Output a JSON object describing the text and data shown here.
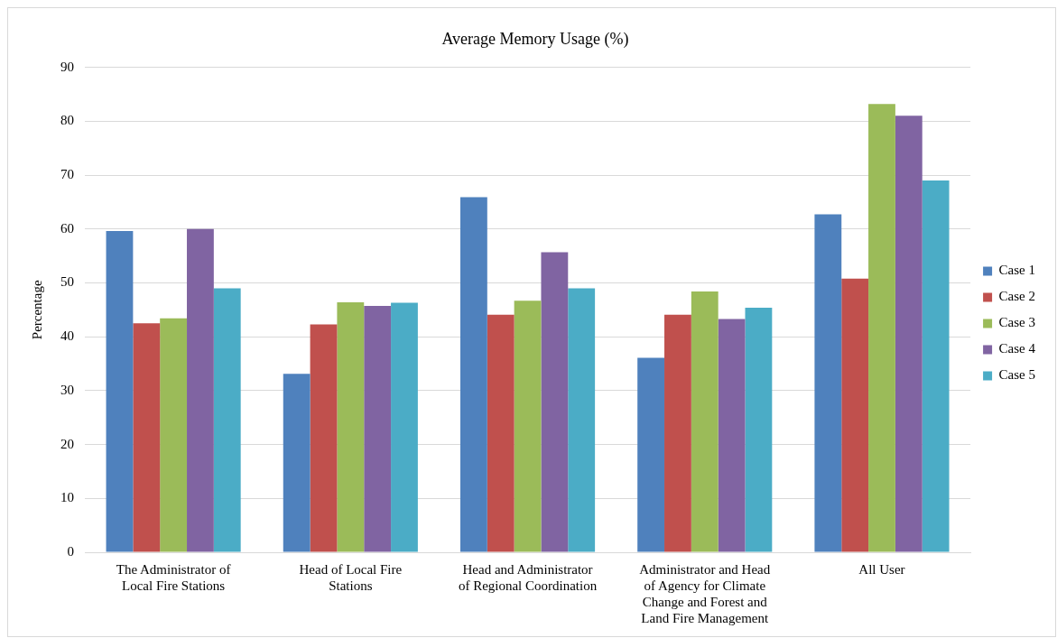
{
  "chart_data": {
    "type": "bar",
    "title": "Average Memory Usage (%)",
    "ylabel": "Percentage",
    "categories": [
      "The Administrator of Local Fire Stations",
      "Head of Local Fire Stations",
      "Head and Administrator of Regional Coordination",
      "Administrator and Head of Agency for Climate Change and Forest and Land Fire Management",
      "All User"
    ],
    "series": [
      {
        "name": "Case 1",
        "color": "#4f81bd",
        "values": [
          59.6,
          33.1,
          65.9,
          36.1,
          62.7
        ]
      },
      {
        "name": "Case 2",
        "color": "#c0504d",
        "values": [
          42.5,
          42.3,
          44.1,
          44.1,
          50.8
        ]
      },
      {
        "name": "Case 3",
        "color": "#9bbb59",
        "values": [
          43.4,
          46.4,
          46.7,
          48.4,
          83.2
        ]
      },
      {
        "name": "Case 4",
        "color": "#8064a2",
        "values": [
          60.0,
          45.7,
          55.7,
          43.3,
          81.0
        ]
      },
      {
        "name": "Case 5",
        "color": "#4bacc6",
        "values": [
          49.0,
          46.3,
          49.0,
          45.4,
          69.0
        ]
      }
    ],
    "ylim": [
      0,
      90
    ],
    "yticks": [
      0,
      10,
      20,
      30,
      40,
      50,
      60,
      70,
      80,
      90
    ],
    "grid": "y",
    "legend": "right"
  }
}
